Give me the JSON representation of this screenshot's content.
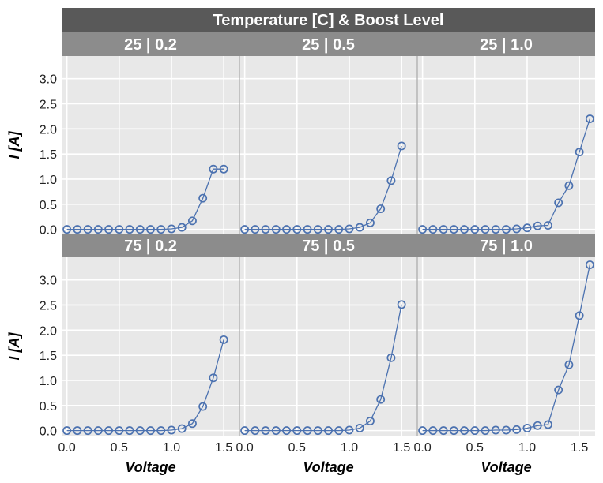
{
  "chart_data": {
    "type": "line",
    "title": "Temperature [C] & Boost Level",
    "xlabel": "Voltage",
    "ylabel": "I [A]",
    "xlim": [
      -0.05,
      1.65
    ],
    "ylim": [
      -0.1,
      3.45
    ],
    "x_ticks": [
      "0.0",
      "0.5",
      "1.0",
      "1.5"
    ],
    "y_ticks": [
      "0.0",
      "0.5",
      "1.0",
      "1.5",
      "2.0",
      "2.5",
      "3.0"
    ],
    "grid": true,
    "marker": "open-circle",
    "colors": {
      "line": "#4c72b0",
      "panel_bg": "#e8e8e8",
      "title_bg": "#595959",
      "strip_bg": "#8c8c8c",
      "grid": "#ffffff"
    },
    "panels": [
      {
        "label": "25 | 0.2",
        "x": [
          0,
          0.1,
          0.2,
          0.3,
          0.4,
          0.5,
          0.6,
          0.7,
          0.8,
          0.9,
          1.0,
          1.1,
          1.2,
          1.3,
          1.4,
          1.5
        ],
        "y": [
          0,
          0,
          0,
          0,
          0,
          0,
          0,
          0,
          0,
          0,
          0.01,
          0.04,
          0.17,
          0.62,
          1.2,
          1.2
        ]
      },
      {
        "label": "25 | 0.5",
        "x": [
          0,
          0.1,
          0.2,
          0.3,
          0.4,
          0.5,
          0.6,
          0.7,
          0.8,
          0.9,
          1.0,
          1.1,
          1.2,
          1.3,
          1.4,
          1.5
        ],
        "y": [
          0,
          0,
          0,
          0,
          0,
          0,
          0,
          0,
          0,
          0,
          0.01,
          0.04,
          0.13,
          0.41,
          0.97,
          1.66
        ]
      },
      {
        "label": "25 | 1.0",
        "x": [
          0,
          0.1,
          0.2,
          0.3,
          0.4,
          0.5,
          0.6,
          0.7,
          0.8,
          0.9,
          1.0,
          1.1,
          1.2,
          1.3,
          1.4,
          1.5,
          1.6
        ],
        "y": [
          0,
          0,
          0,
          0,
          0,
          0,
          0,
          0,
          0,
          0.01,
          0.03,
          0.07,
          0.08,
          0.53,
          0.87,
          1.54,
          2.2
        ]
      },
      {
        "label": "75 | 0.2",
        "x": [
          0,
          0.1,
          0.2,
          0.3,
          0.4,
          0.5,
          0.6,
          0.7,
          0.8,
          0.9,
          1.0,
          1.1,
          1.2,
          1.3,
          1.4,
          1.5
        ],
        "y": [
          0,
          0,
          0,
          0,
          0,
          0,
          0,
          0,
          0,
          0,
          0.01,
          0.04,
          0.14,
          0.48,
          1.05,
          1.81
        ]
      },
      {
        "label": "75 | 0.5",
        "x": [
          0,
          0.1,
          0.2,
          0.3,
          0.4,
          0.5,
          0.6,
          0.7,
          0.8,
          0.9,
          1.0,
          1.1,
          1.2,
          1.3,
          1.4,
          1.5
        ],
        "y": [
          0,
          0,
          0,
          0,
          0,
          0,
          0,
          0,
          0,
          0,
          0.01,
          0.05,
          0.19,
          0.62,
          1.45,
          2.51
        ]
      },
      {
        "label": "75 | 1.0",
        "x": [
          0,
          0.1,
          0.2,
          0.3,
          0.4,
          0.5,
          0.6,
          0.7,
          0.8,
          0.9,
          1.0,
          1.1,
          1.2,
          1.3,
          1.4,
          1.5,
          1.6
        ],
        "y": [
          0,
          0,
          0,
          0,
          0,
          0,
          0,
          0.01,
          0.01,
          0.02,
          0.05,
          0.1,
          0.12,
          0.81,
          1.31,
          2.29,
          3.3
        ]
      }
    ]
  }
}
